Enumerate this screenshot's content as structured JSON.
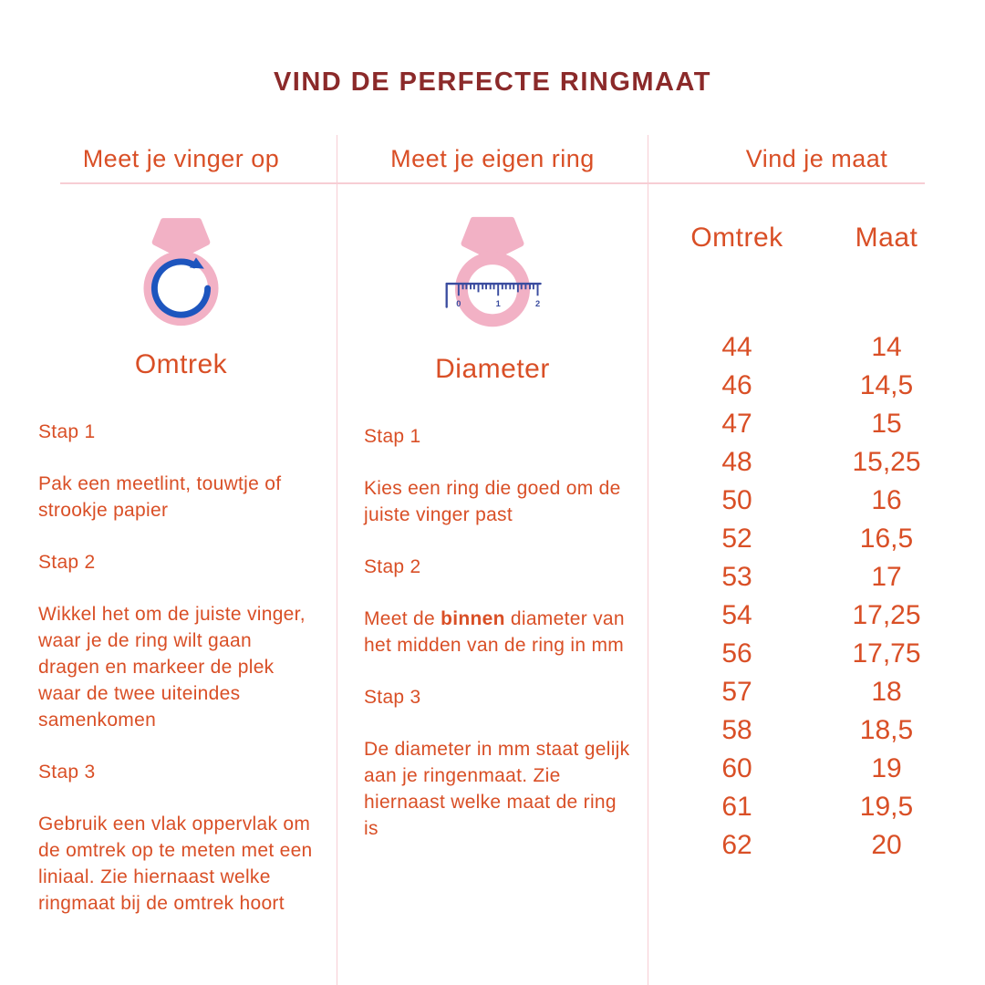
{
  "title": "VIND DE PERFECTE RINGMAAT",
  "colors": {
    "maroon": "#8B2A2A",
    "orange": "#D94F26",
    "pink-line": "#F7CDD4",
    "pink-ring": "#F2B1C5",
    "blue": "#1D55BE",
    "navy": "#3A4C9F",
    "bg": "#FFFFFF"
  },
  "columns": [
    {
      "header": "Meet je vinger op",
      "icon": "ring-circumference-icon",
      "label": "Omtrek",
      "steps": [
        {
          "title": "Stap 1",
          "text": "Pak een meetlint, touwtje of strookje papier"
        },
        {
          "title": "Stap 2",
          "text": "Wikkel het om de juiste vinger, waar je de ring wilt gaan dragen en markeer de plek waar de twee uiteindes samenkomen"
        },
        {
          "title": "Stap 3",
          "text": "Gebruik een vlak oppervlak om de omtrek op te meten met een liniaal. Zie hiernaast welke ringmaat bij de omtrek hoort"
        }
      ]
    },
    {
      "header": "Meet je eigen ring",
      "icon": "ring-diameter-icon",
      "label": "Diameter",
      "steps": [
        {
          "title": "Stap 1",
          "text": "Kies een ring die goed om de juiste vinger past"
        },
        {
          "title": "Stap 2",
          "text_prefix": "Meet de ",
          "text_bold": "binnen",
          "text_suffix": " diameter van het midden van de ring in mm"
        },
        {
          "title": "Stap 3",
          "text": "De diameter in mm staat gelijk aan je ringenmaat. Zie hiernaast welke maat de ring is"
        }
      ]
    },
    {
      "header": "Vind je maat",
      "table": {
        "headers": [
          "Omtrek",
          "Maat"
        ],
        "rows": [
          [
            "44",
            "14"
          ],
          [
            "46",
            "14,5"
          ],
          [
            "47",
            "15"
          ],
          [
            "48",
            "15,25"
          ],
          [
            "50",
            "16"
          ],
          [
            "52",
            "16,5"
          ],
          [
            "53",
            "17"
          ],
          [
            "54",
            "17,25"
          ],
          [
            "56",
            "17,75"
          ],
          [
            "57",
            "18"
          ],
          [
            "58",
            "18,5"
          ],
          [
            "60",
            "19"
          ],
          [
            "61",
            "19,5"
          ],
          [
            "62",
            "20"
          ]
        ]
      }
    }
  ],
  "ruler": {
    "labels": [
      "0",
      "1",
      "2"
    ]
  }
}
